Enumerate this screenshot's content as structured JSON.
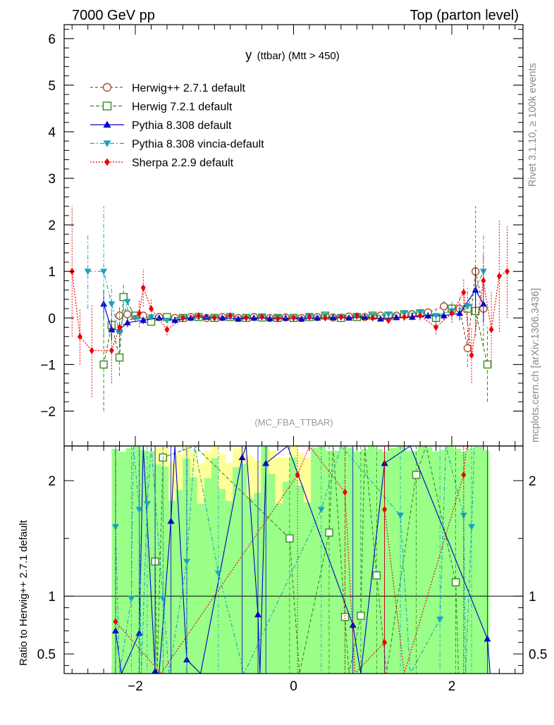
{
  "header": {
    "left": "7000 GeV pp",
    "right": "Top (parton level)"
  },
  "side": {
    "rivet": "Rivet 3.1.10, ≥ 100k events",
    "mcplots": "mcplots.cern.ch [arXiv:1306.3436]"
  },
  "chart_data": [
    {
      "type": "line",
      "title_main": "y",
      "title_sub": "(ttbar) (Mtt > 450)",
      "watermark": "(MC_FBA_TTBAR)",
      "xlim": [
        -2.9,
        2.9
      ],
      "ylim": [
        -2.75,
        6.3
      ],
      "yticks": [
        -2,
        -1,
        0,
        1,
        2,
        3,
        4,
        5,
        6
      ],
      "xticks": [
        -2,
        0,
        2
      ],
      "xtick_labels": [
        "−2",
        "0",
        "2"
      ],
      "ytick_labels": [
        "−2",
        "−1",
        "0",
        "1",
        "2",
        "3",
        "4",
        "5",
        "6"
      ],
      "legend_position": "top-left",
      "series": [
        {
          "name": "Herwig++ 2.7.1 default",
          "color": "#a0522d",
          "marker": "circle-open",
          "dash": "4,3",
          "points": [
            [
              -2.3,
              -0.2
            ],
            [
              -2.2,
              0.05
            ],
            [
              -2.1,
              0.08
            ],
            [
              -1.9,
              0.05
            ],
            [
              -1.7,
              0.02
            ],
            [
              -1.5,
              0.0
            ],
            [
              -1.3,
              0.02
            ],
            [
              -1.1,
              0.0
            ],
            [
              -0.9,
              0.02
            ],
            [
              -0.7,
              0.0
            ],
            [
              -0.5,
              0.02
            ],
            [
              -0.3,
              0.0
            ],
            [
              -0.1,
              0.01
            ],
            [
              0.1,
              0.0
            ],
            [
              0.3,
              0.02
            ],
            [
              0.5,
              0.01
            ],
            [
              0.7,
              0.03
            ],
            [
              0.9,
              0.02
            ],
            [
              1.1,
              0.05
            ],
            [
              1.3,
              0.05
            ],
            [
              1.5,
              0.08
            ],
            [
              1.7,
              0.12
            ],
            [
              1.9,
              0.25
            ],
            [
              2.1,
              0.2
            ],
            [
              2.2,
              -0.65
            ],
            [
              2.3,
              1.0
            ],
            [
              2.4,
              0.2
            ]
          ],
          "err": [
            0.3,
            0.2,
            0.1,
            0.08,
            0.06,
            0.05,
            0.05,
            0.04,
            0.04,
            0.04,
            0.04,
            0.04,
            0.04,
            0.04,
            0.04,
            0.04,
            0.05,
            0.05,
            0.06,
            0.06,
            0.08,
            0.1,
            0.15,
            0.25,
            0.4,
            1.4,
            0.8
          ]
        },
        {
          "name": "Herwig 7.2.1 default",
          "color": "#3a8a1e",
          "marker": "square-open",
          "dash": "5,3",
          "points": [
            [
              -2.4,
              -1.0
            ],
            [
              -2.3,
              -0.15
            ],
            [
              -2.2,
              -0.85
            ],
            [
              -2.15,
              0.45
            ],
            [
              -2.0,
              0.05
            ],
            [
              -1.8,
              -0.08
            ],
            [
              -1.6,
              0.02
            ],
            [
              -1.4,
              0.0
            ],
            [
              -1.2,
              0.02
            ],
            [
              -1.0,
              0.0
            ],
            [
              -0.8,
              0.02
            ],
            [
              -0.6,
              0.0
            ],
            [
              -0.4,
              0.01
            ],
            [
              -0.2,
              0.0
            ],
            [
              0.0,
              0.0
            ],
            [
              0.2,
              0.02
            ],
            [
              0.4,
              0.05
            ],
            [
              0.6,
              0.0
            ],
            [
              0.8,
              0.02
            ],
            [
              1.0,
              0.05
            ],
            [
              1.2,
              0.05
            ],
            [
              1.4,
              0.08
            ],
            [
              1.6,
              0.1
            ],
            [
              1.8,
              0.0
            ],
            [
              2.0,
              0.2
            ],
            [
              2.2,
              0.2
            ],
            [
              2.3,
              0.15
            ],
            [
              2.45,
              -1.0
            ]
          ],
          "err": [
            1.0,
            0.3,
            0.4,
            0.3,
            0.12,
            0.08,
            0.06,
            0.05,
            0.05,
            0.04,
            0.04,
            0.04,
            0.04,
            0.04,
            0.04,
            0.04,
            0.05,
            0.05,
            0.05,
            0.06,
            0.07,
            0.08,
            0.1,
            0.12,
            0.15,
            0.25,
            0.4,
            0.8
          ]
        },
        {
          "name": "Pythia 8.308 default",
          "color": "#0000cc",
          "marker": "triangle-up",
          "dash": "",
          "points": [
            [
              -2.4,
              0.3
            ],
            [
              -2.3,
              -0.25
            ],
            [
              -2.2,
              -0.25
            ],
            [
              -2.1,
              -0.1
            ],
            [
              -1.9,
              -0.05
            ],
            [
              -1.7,
              0.0
            ],
            [
              -1.5,
              -0.05
            ],
            [
              -1.3,
              0.0
            ],
            [
              -1.1,
              0.02
            ],
            [
              -0.9,
              0.0
            ],
            [
              -0.7,
              -0.02
            ],
            [
              -0.5,
              0.0
            ],
            [
              -0.3,
              -0.01
            ],
            [
              -0.1,
              0.0
            ],
            [
              0.1,
              -0.02
            ],
            [
              0.3,
              0.0
            ],
            [
              0.5,
              0.01
            ],
            [
              0.7,
              0.0
            ],
            [
              0.9,
              0.02
            ],
            [
              1.1,
              -0.02
            ],
            [
              1.3,
              0.01
            ],
            [
              1.5,
              0.02
            ],
            [
              1.7,
              0.05
            ],
            [
              1.9,
              0.05
            ],
            [
              2.1,
              0.1
            ],
            [
              2.3,
              0.6
            ],
            [
              2.4,
              0.3
            ]
          ],
          "err": [
            0.3,
            0.2,
            0.15,
            0.1,
            0.08,
            0.06,
            0.05,
            0.05,
            0.04,
            0.04,
            0.04,
            0.04,
            0.04,
            0.04,
            0.04,
            0.04,
            0.04,
            0.05,
            0.05,
            0.05,
            0.06,
            0.07,
            0.08,
            0.1,
            0.15,
            0.5,
            0.4
          ]
        },
        {
          "name": "Pythia 8.308 vincia-default",
          "color": "#1aa3c4",
          "marker": "triangle-down",
          "dash": "6,3,2,3",
          "points": [
            [
              -2.6,
              1.0
            ],
            [
              -2.4,
              1.0
            ],
            [
              -2.3,
              0.3
            ],
            [
              -2.2,
              -0.3
            ],
            [
              -2.1,
              0.35
            ],
            [
              -2.0,
              0.0
            ],
            [
              -1.8,
              0.02
            ],
            [
              -1.6,
              -0.05
            ],
            [
              -1.4,
              0.0
            ],
            [
              -1.2,
              0.01
            ],
            [
              -1.0,
              0.0
            ],
            [
              -0.8,
              0.02
            ],
            [
              -0.6,
              0.0
            ],
            [
              -0.4,
              0.02
            ],
            [
              -0.2,
              0.01
            ],
            [
              0.0,
              0.0
            ],
            [
              0.2,
              0.03
            ],
            [
              0.4,
              0.05
            ],
            [
              0.6,
              0.02
            ],
            [
              0.8,
              0.03
            ],
            [
              1.0,
              0.05
            ],
            [
              1.2,
              0.08
            ],
            [
              1.4,
              0.1
            ],
            [
              1.6,
              0.12
            ],
            [
              1.8,
              0.05
            ],
            [
              2.0,
              0.15
            ],
            [
              2.2,
              0.25
            ],
            [
              2.4,
              1.0
            ]
          ],
          "err": [
            0.8,
            1.4,
            0.4,
            0.3,
            0.2,
            0.1,
            0.07,
            0.06,
            0.05,
            0.05,
            0.04,
            0.04,
            0.04,
            0.04,
            0.04,
            0.04,
            0.04,
            0.05,
            0.05,
            0.05,
            0.06,
            0.07,
            0.08,
            0.1,
            0.12,
            0.2,
            0.4,
            0.8
          ]
        },
        {
          "name": "Sherpa 2.2.9 default",
          "color": "#ee0000",
          "marker": "diamond",
          "dash": "2,2",
          "points": [
            [
              -2.8,
              1.0
            ],
            [
              -2.7,
              -0.4
            ],
            [
              -2.55,
              -0.7
            ],
            [
              -2.3,
              -0.7
            ],
            [
              -2.2,
              -0.2
            ],
            [
              -1.95,
              0.1
            ],
            [
              -1.9,
              0.65
            ],
            [
              -1.8,
              0.2
            ],
            [
              -1.6,
              -0.25
            ],
            [
              -1.4,
              0.0
            ],
            [
              -1.2,
              0.05
            ],
            [
              -1.0,
              0.0
            ],
            [
              -0.8,
              0.05
            ],
            [
              -0.6,
              0.0
            ],
            [
              -0.4,
              0.02
            ],
            [
              -0.2,
              -0.02
            ],
            [
              0.0,
              0.0
            ],
            [
              0.2,
              0.02
            ],
            [
              0.4,
              0.0
            ],
            [
              0.6,
              0.02
            ],
            [
              0.8,
              0.05
            ],
            [
              1.0,
              0.0
            ],
            [
              1.2,
              -0.05
            ],
            [
              1.4,
              0.02
            ],
            [
              1.6,
              0.05
            ],
            [
              1.8,
              -0.2
            ],
            [
              2.0,
              0.1
            ],
            [
              2.15,
              0.55
            ],
            [
              2.25,
              -0.8
            ],
            [
              2.4,
              0.8
            ],
            [
              2.5,
              -0.25
            ],
            [
              2.6,
              0.9
            ],
            [
              2.7,
              1.0
            ]
          ],
          "err": [
            1.4,
            0.6,
            1.0,
            0.7,
            0.4,
            0.3,
            0.4,
            0.2,
            0.12,
            0.08,
            0.06,
            0.05,
            0.05,
            0.04,
            0.04,
            0.04,
            0.04,
            0.04,
            0.04,
            0.05,
            0.05,
            0.06,
            0.07,
            0.08,
            0.1,
            0.15,
            0.2,
            0.3,
            0.6,
            0.6,
            0.8,
            1.2,
            1.0
          ]
        }
      ]
    },
    {
      "type": "line",
      "ylabel": "Ratio to Herwig++ 2.7.1 default",
      "xlim": [
        -2.9,
        2.9
      ],
      "ylim": [
        0.33,
        2.3
      ],
      "yticks": [
        0.5,
        1,
        2
      ],
      "ytick_labels": [
        "0.5",
        "1",
        "2"
      ],
      "reference": 1,
      "band_note": "yellow = Herwig++ 2.7.1 stat uncertainty, green = MC uncertainty",
      "series": [
        {
          "name": "Herwig 7.2.1 default",
          "color": "#3a8a1e",
          "marker": "square-open",
          "points": [
            [
              -1.75,
              1.3
            ],
            [
              -1.65,
              2.2
            ],
            [
              -0.05,
              1.5
            ],
            [
              0.45,
              1.55
            ],
            [
              0.65,
              0.82
            ],
            [
              0.85,
              0.83
            ],
            [
              1.05,
              1.18
            ],
            [
              1.55,
              2.05
            ],
            [
              2.05,
              1.12
            ]
          ]
        },
        {
          "name": "Pythia 8.308 default",
          "color": "#0000cc",
          "marker": "triangle-up",
          "points": [
            [
              -2.25,
              0.7
            ],
            [
              -1.95,
              0.68
            ],
            [
              -1.75,
              0.35
            ],
            [
              -1.55,
              1.65
            ],
            [
              -1.35,
              0.45
            ],
            [
              -0.65,
              2.2
            ],
            [
              -0.45,
              0.84
            ],
            [
              -0.35,
              2.15
            ],
            [
              0.75,
              0.75
            ],
            [
              1.15,
              2.15
            ],
            [
              2.45,
              0.63
            ]
          ]
        },
        {
          "name": "Pythia 8.308 vincia-default",
          "color": "#1aa3c4",
          "marker": "triangle-down",
          "points": [
            [
              -2.25,
              1.6
            ],
            [
              -2.05,
              0.98
            ],
            [
              -1.95,
              1.75
            ],
            [
              -1.85,
              1.8
            ],
            [
              -1.65,
              0.98
            ],
            [
              -1.35,
              1.3
            ],
            [
              -0.95,
              1.2
            ],
            [
              0.35,
              1.75
            ],
            [
              1.35,
              1.7
            ],
            [
              1.85,
              0.8
            ],
            [
              2.15,
              1.7
            ],
            [
              2.25,
              1.6
            ]
          ]
        },
        {
          "name": "Sherpa 2.2.9 default",
          "color": "#ee0000",
          "marker": "diamond",
          "points": [
            [
              -2.25,
              0.78
            ],
            [
              0.05,
              2.05
            ],
            [
              0.65,
              1.9
            ],
            [
              1.15,
              0.6
            ],
            [
              1.15,
              1.75
            ],
            [
              2.15,
              2.05
            ]
          ]
        }
      ]
    }
  ]
}
